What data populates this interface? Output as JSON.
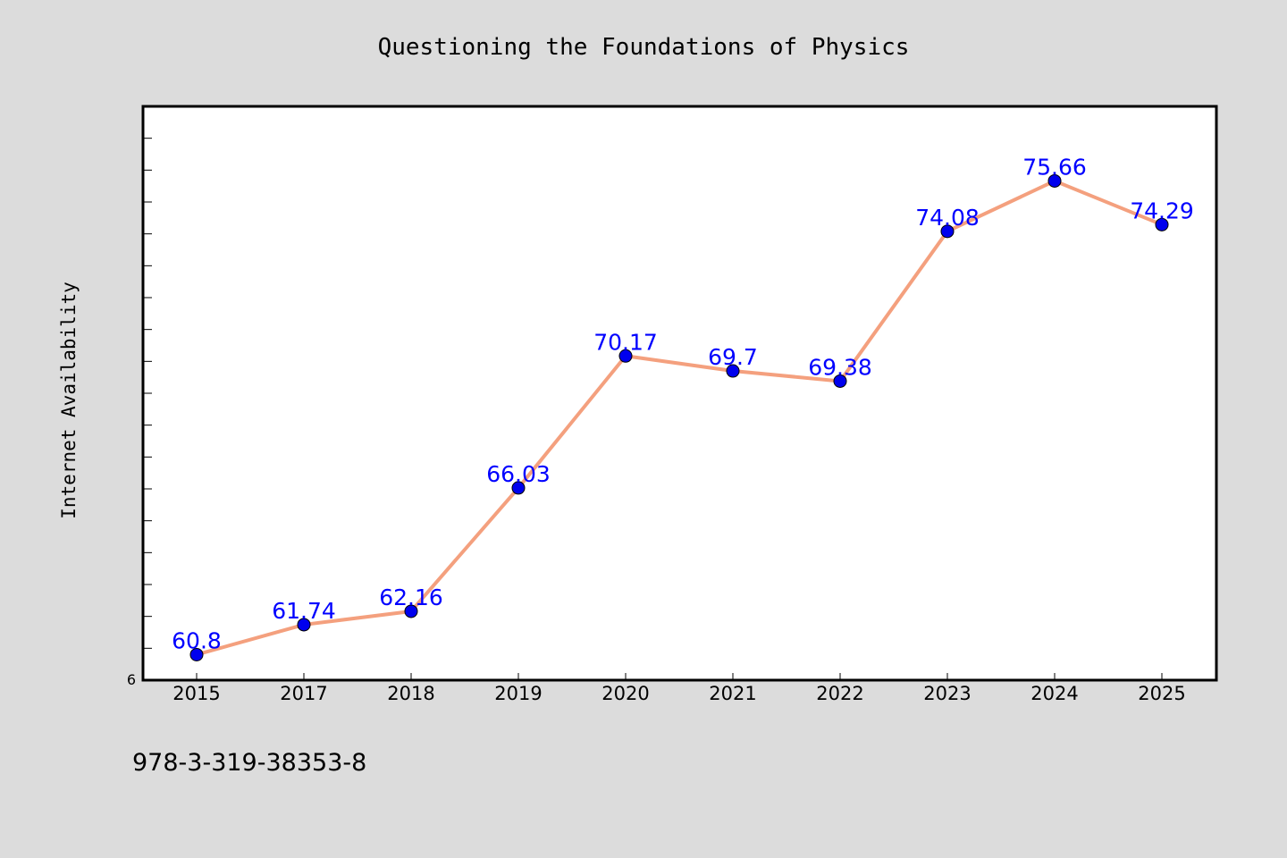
{
  "chart_data": {
    "type": "line",
    "title": "Questioning the Foundations of Physics",
    "xlabel": "",
    "ylabel": "Internet Availability",
    "categories": [
      "2015",
      "2017",
      "2018",
      "2019",
      "2020",
      "2021",
      "2022",
      "2023",
      "2024",
      "2025"
    ],
    "values": [
      60.8,
      61.74,
      62.16,
      66.03,
      70.17,
      69.7,
      69.38,
      74.08,
      75.66,
      74.29
    ],
    "data_labels": [
      "60.8",
      "61.74",
      "62.16",
      "66.03",
      "70.17",
      "69.7",
      "69.38",
      "74.08",
      "75.66",
      "74.29"
    ],
    "ylim": [
      60,
      78
    ],
    "y_tick_label": "6",
    "line_color": "#f4a07e",
    "marker_color": "#0000ee",
    "label_color": "#0000ff",
    "grid": false
  },
  "footer": {
    "isbn": "978-3-319-38353-8"
  }
}
